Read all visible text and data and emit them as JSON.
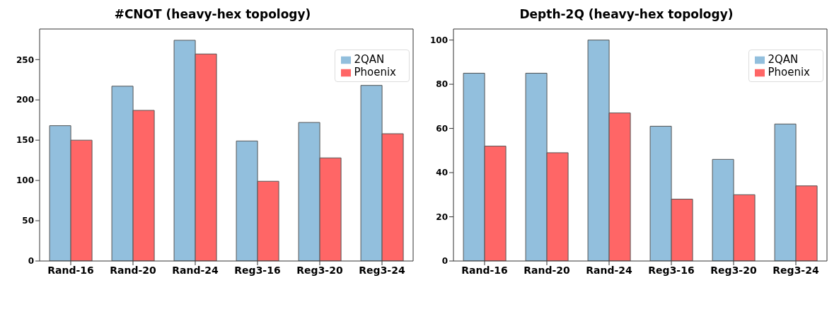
{
  "chart_data": [
    {
      "type": "bar",
      "title": "#CNOT (heavy-hex topology)",
      "categories": [
        "Rand-16",
        "Rand-20",
        "Rand-24",
        "Reg3-16",
        "Reg3-20",
        "Reg3-24"
      ],
      "series": [
        {
          "name": "2QAN",
          "color": "#92bfdd",
          "values": [
            168,
            217,
            274,
            149,
            172,
            218
          ]
        },
        {
          "name": "Phoenix",
          "color": "#ff6666",
          "values": [
            150,
            187,
            257,
            99,
            128,
            158
          ]
        }
      ],
      "ylim": [
        0,
        288
      ],
      "yticks": [
        0,
        50,
        100,
        150,
        200,
        250
      ],
      "grid": false,
      "legend": "top right"
    },
    {
      "type": "bar",
      "title": "Depth-2Q (heavy-hex topology)",
      "categories": [
        "Rand-16",
        "Rand-20",
        "Rand-24",
        "Reg3-16",
        "Reg3-20",
        "Reg3-24"
      ],
      "series": [
        {
          "name": "2QAN",
          "color": "#92bfdd",
          "values": [
            85,
            85,
            100,
            61,
            46,
            62
          ]
        },
        {
          "name": "Phoenix",
          "color": "#ff6666",
          "values": [
            52,
            49,
            67,
            28,
            30,
            34
          ]
        }
      ],
      "ylim": [
        0,
        105
      ],
      "yticks": [
        0,
        20,
        40,
        60,
        80,
        100
      ],
      "grid": false,
      "legend": "top right"
    }
  ]
}
